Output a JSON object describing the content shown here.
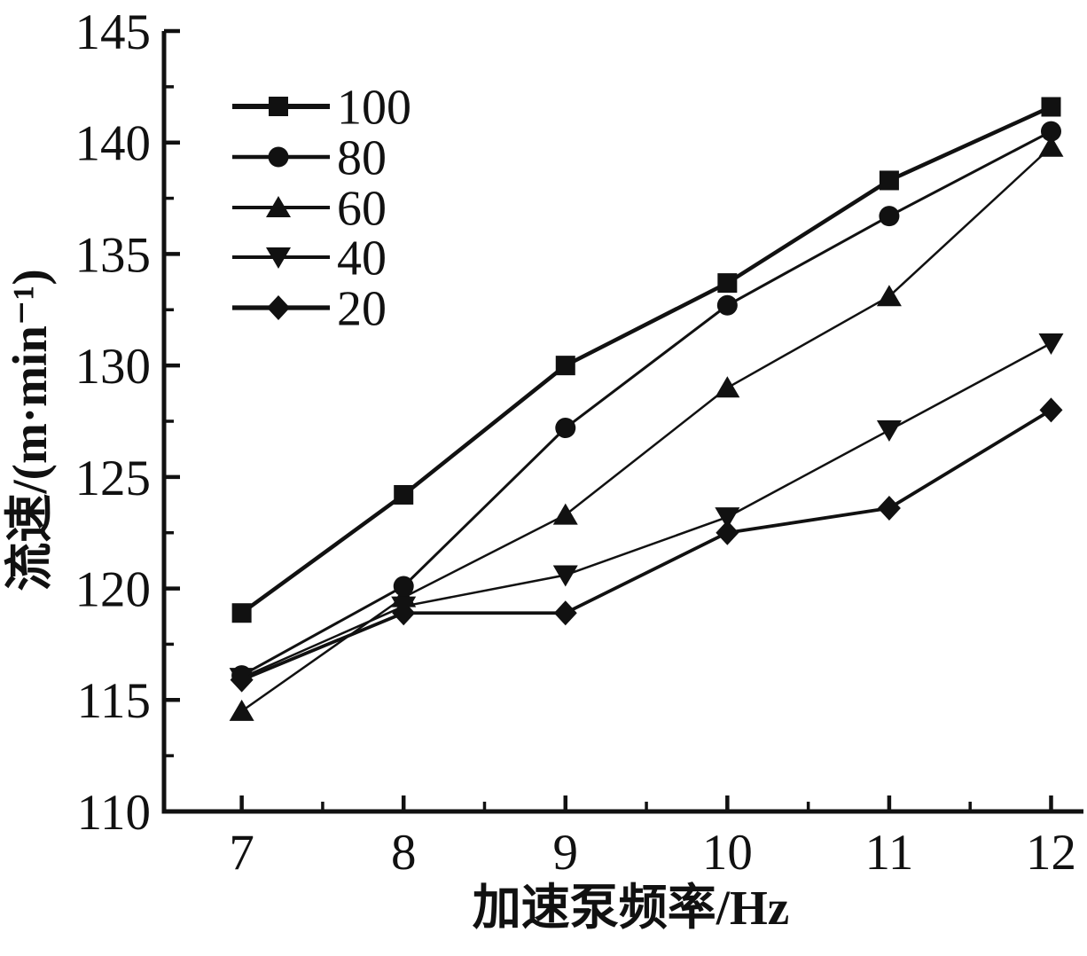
{
  "figure": {
    "background": "#ffffff",
    "ink": "#111111"
  },
  "chart_data": {
    "type": "line",
    "title": "",
    "xlabel": "加速泵频率/Hz",
    "ylabel": "流速/(m·min⁻¹)",
    "x": [
      7,
      8,
      9,
      10,
      11,
      12
    ],
    "xlim": [
      6.52,
      12.2
    ],
    "ylim": [
      110,
      145
    ],
    "x_major_ticks": [
      7,
      8,
      9,
      10,
      11,
      12
    ],
    "x_minor_ticks": [
      7.5,
      8.5,
      9.5,
      10.5,
      11.5
    ],
    "y_major_ticks": [
      110,
      115,
      120,
      125,
      130,
      135,
      140,
      145
    ],
    "y_minor_ticks": [
      112.5,
      117.5,
      122.5,
      127.5,
      132.5,
      137.5,
      142.5
    ],
    "grid": false,
    "legend": {
      "position": "upper-left",
      "entries": [
        "100",
        "80",
        "60",
        "40",
        "20"
      ]
    },
    "series": [
      {
        "name": "100",
        "marker": "square",
        "line_width": 4.5,
        "values": [
          118.9,
          124.2,
          130.0,
          133.7,
          138.3,
          141.6
        ]
      },
      {
        "name": "80",
        "marker": "circle",
        "line_width": 3.0,
        "values": [
          116.1,
          120.1,
          127.2,
          132.7,
          136.7,
          140.5
        ]
      },
      {
        "name": "60",
        "marker": "triangle-up",
        "line_width": 2.5,
        "values": [
          114.5,
          119.6,
          123.3,
          129.0,
          133.1,
          139.8
        ]
      },
      {
        "name": "40",
        "marker": "triangle-down",
        "line_width": 2.5,
        "values": [
          116.0,
          119.2,
          120.6,
          123.2,
          127.1,
          131.0
        ]
      },
      {
        "name": "20",
        "marker": "diamond",
        "line_width": 3.8,
        "values": [
          115.9,
          118.9,
          118.9,
          122.5,
          123.6,
          128.0
        ]
      }
    ]
  }
}
